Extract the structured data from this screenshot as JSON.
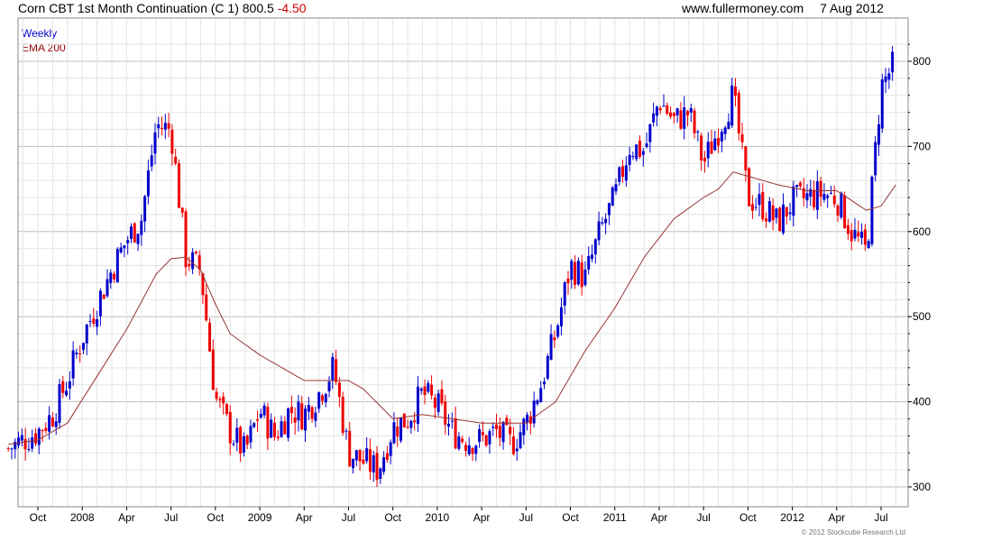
{
  "header": {
    "title": "Corn CBT 1st Month Continuation (C 1)",
    "last": "800.5",
    "change": "-4.50",
    "site": "www.fullermoney.com",
    "date": "7 Aug 2012"
  },
  "legend": {
    "period": "Weekly",
    "indicator": "EMA 200"
  },
  "copyright": "© 2012 Stockcube Research Ltd",
  "colors": {
    "up": "#0000cc",
    "down": "#ee0000",
    "ema": "#993333",
    "grid": "#e4e4e4",
    "grid_major": "#bdbdbd"
  },
  "chart_data": {
    "type": "candlestick",
    "title": "Corn CBT 1st Month Continuation (C 1)",
    "frequency": "weekly",
    "ylim": [
      290,
      830
    ],
    "y_ticks": [
      300,
      400,
      500,
      600,
      700,
      800
    ],
    "x_ticks": [
      {
        "label": "Oct",
        "x": "2007-10"
      },
      {
        "label": "2008",
        "x": "2008-01"
      },
      {
        "label": "Apr",
        "x": "2008-04"
      },
      {
        "label": "Jul",
        "x": "2008-07"
      },
      {
        "label": "Oct",
        "x": "2008-10"
      },
      {
        "label": "2009",
        "x": "2009-01"
      },
      {
        "label": "Apr",
        "x": "2009-04"
      },
      {
        "label": "Jul",
        "x": "2009-07"
      },
      {
        "label": "Oct",
        "x": "2009-10"
      },
      {
        "label": "2010",
        "x": "2010-01"
      },
      {
        "label": "Apr",
        "x": "2010-04"
      },
      {
        "label": "Jul",
        "x": "2010-07"
      },
      {
        "label": "Oct",
        "x": "2010-10"
      },
      {
        "label": "2011",
        "x": "2011-01"
      },
      {
        "label": "Apr",
        "x": "2011-04"
      },
      {
        "label": "Jul",
        "x": "2011-07"
      },
      {
        "label": "Oct",
        "x": "2011-10"
      },
      {
        "label": "2012",
        "x": "2012-01"
      },
      {
        "label": "Apr",
        "x": "2012-04"
      },
      {
        "label": "Jul",
        "x": "2012-07"
      }
    ],
    "price_path": [
      [
        "2007-08",
        345
      ],
      [
        "2007-09",
        355
      ],
      [
        "2007-10",
        365
      ],
      [
        "2007-11",
        385
      ],
      [
        "2007-12",
        425
      ],
      [
        "2008-01",
        475
      ],
      [
        "2008-02",
        515
      ],
      [
        "2008-03",
        555
      ],
      [
        "2008-04",
        590
      ],
      [
        "2008-05",
        615
      ],
      [
        "2008-06",
        725
      ],
      [
        "2008-07",
        720
      ],
      [
        "2008-08",
        570
      ],
      [
        "2008-09",
        555
      ],
      [
        "2008-10",
        405
      ],
      [
        "2008-11",
        365
      ],
      [
        "2008-12",
        340
      ],
      [
        "2009-01",
        390
      ],
      [
        "2009-02",
        360
      ],
      [
        "2009-03",
        390
      ],
      [
        "2009-04",
        385
      ],
      [
        "2009-05",
        410
      ],
      [
        "2009-06",
        440
      ],
      [
        "2009-07",
        340
      ],
      [
        "2009-08",
        330
      ],
      [
        "2009-09",
        320
      ],
      [
        "2009-10",
        370
      ],
      [
        "2009-11",
        380
      ],
      [
        "2009-12",
        410
      ],
      [
        "2010-01",
        395
      ],
      [
        "2010-02",
        365
      ],
      [
        "2010-03",
        355
      ],
      [
        "2010-04",
        355
      ],
      [
        "2010-05",
        365
      ],
      [
        "2010-06",
        350
      ],
      [
        "2010-07",
        375
      ],
      [
        "2010-08",
        420
      ],
      [
        "2010-09",
        480
      ],
      [
        "2010-10",
        560
      ],
      [
        "2010-11",
        545
      ],
      [
        "2010-12",
        600
      ],
      [
        "2011-01",
        640
      ],
      [
        "2011-02",
        700
      ],
      [
        "2011-03",
        695
      ],
      [
        "2011-04",
        755
      ],
      [
        "2011-05",
        730
      ],
      [
        "2011-06",
        740
      ],
      [
        "2011-07",
        680
      ],
      [
        "2011-08",
        720
      ],
      [
        "2011-09",
        760
      ],
      [
        "2011-10",
        640
      ],
      [
        "2011-11",
        630
      ],
      [
        "2011-12",
        610
      ],
      [
        "2012-01",
        635
      ],
      [
        "2012-02",
        640
      ],
      [
        "2012-03",
        645
      ],
      [
        "2012-04",
        640
      ],
      [
        "2012-05",
        600
      ],
      [
        "2012-06",
        575
      ],
      [
        "2012-07",
        770
      ],
      [
        "2012-08",
        800.5
      ]
    ],
    "ema_200_path": [
      [
        "2007-08",
        350
      ],
      [
        "2007-10",
        355
      ],
      [
        "2007-12",
        375
      ],
      [
        "2008-02",
        430
      ],
      [
        "2008-04",
        485
      ],
      [
        "2008-06",
        550
      ],
      [
        "2008-07",
        568
      ],
      [
        "2008-08",
        570
      ],
      [
        "2008-09",
        555
      ],
      [
        "2008-10",
        515
      ],
      [
        "2008-11",
        480
      ],
      [
        "2009-01",
        455
      ],
      [
        "2009-04",
        425
      ],
      [
        "2009-07",
        425
      ],
      [
        "2009-08",
        415
      ],
      [
        "2009-10",
        380
      ],
      [
        "2009-12",
        385
      ],
      [
        "2010-02",
        380
      ],
      [
        "2010-04",
        375
      ],
      [
        "2010-07",
        375
      ],
      [
        "2010-09",
        400
      ],
      [
        "2010-11",
        460
      ],
      [
        "2011-01",
        510
      ],
      [
        "2011-03",
        570
      ],
      [
        "2011-05",
        615
      ],
      [
        "2011-07",
        640
      ],
      [
        "2011-08",
        650
      ],
      [
        "2011-09",
        670
      ],
      [
        "2011-10",
        665
      ],
      [
        "2011-12",
        655
      ],
      [
        "2012-02",
        648
      ],
      [
        "2012-04",
        648
      ],
      [
        "2012-06",
        625
      ],
      [
        "2012-07",
        630
      ],
      [
        "2012-08",
        655
      ]
    ]
  }
}
